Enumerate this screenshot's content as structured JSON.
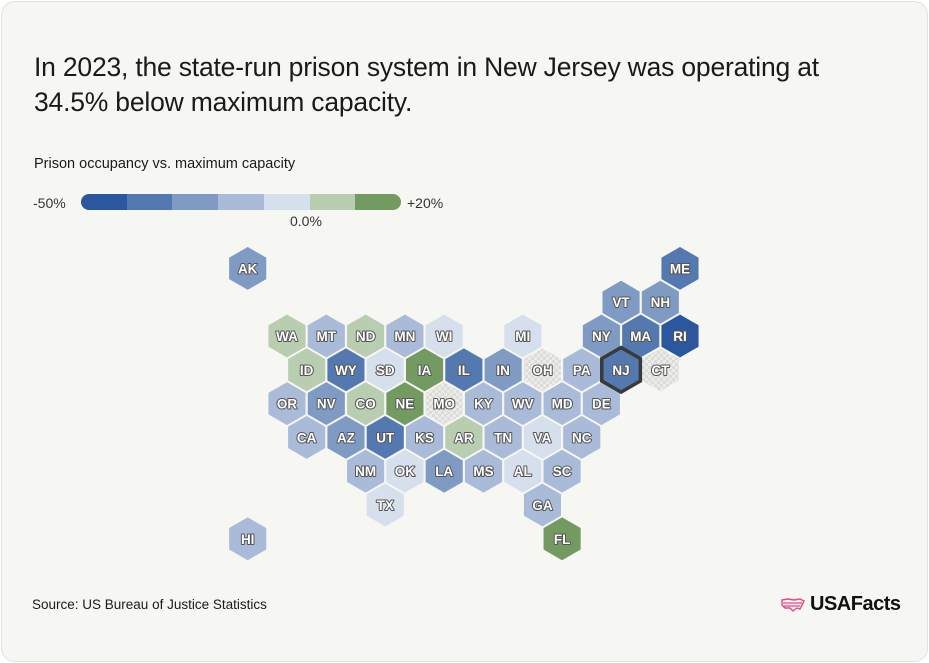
{
  "title": "In 2023, the state-run prison system in New Jersey was operating at 34.5% below maximum capacity.",
  "legend": {
    "title": "Prison occupancy vs. maximum capacity",
    "min_label": "-50%",
    "max_label": "+20%",
    "mid_label": "0.0%",
    "bins": [
      "#2b579e",
      "#5479b0",
      "#7f9bc4",
      "#a9bbd8",
      "#d6dfec",
      "#b9cdb0",
      "#739a60"
    ],
    "no_data_pattern": "gray checker"
  },
  "map": {
    "highlighted_state": "NJ",
    "states": [
      {
        "code": "AK",
        "bin": 2
      },
      {
        "code": "ME",
        "bin": 1
      },
      {
        "code": "VT",
        "bin": 2
      },
      {
        "code": "NH",
        "bin": 2
      },
      {
        "code": "WA",
        "bin": 5
      },
      {
        "code": "MT",
        "bin": 3
      },
      {
        "code": "ND",
        "bin": 5
      },
      {
        "code": "MN",
        "bin": 3
      },
      {
        "code": "WI",
        "bin": 4
      },
      {
        "code": "MI",
        "bin": 4
      },
      {
        "code": "NY",
        "bin": 2
      },
      {
        "code": "MA",
        "bin": 1
      },
      {
        "code": "RI",
        "bin": 0
      },
      {
        "code": "ID",
        "bin": 5
      },
      {
        "code": "WY",
        "bin": 1
      },
      {
        "code": "SD",
        "bin": 4
      },
      {
        "code": "IA",
        "bin": 6
      },
      {
        "code": "IL",
        "bin": 1
      },
      {
        "code": "IN",
        "bin": 2
      },
      {
        "code": "OH",
        "bin": null
      },
      {
        "code": "PA",
        "bin": 3
      },
      {
        "code": "NJ",
        "bin": 1
      },
      {
        "code": "CT",
        "bin": null
      },
      {
        "code": "OR",
        "bin": 3
      },
      {
        "code": "NV",
        "bin": 2
      },
      {
        "code": "CO",
        "bin": 5
      },
      {
        "code": "NE",
        "bin": 6
      },
      {
        "code": "MO",
        "bin": null
      },
      {
        "code": "KY",
        "bin": 3
      },
      {
        "code": "WV",
        "bin": 3
      },
      {
        "code": "MD",
        "bin": 3
      },
      {
        "code": "DE",
        "bin": 3
      },
      {
        "code": "CA",
        "bin": 3
      },
      {
        "code": "AZ",
        "bin": 2
      },
      {
        "code": "UT",
        "bin": 1
      },
      {
        "code": "KS",
        "bin": 3
      },
      {
        "code": "AR",
        "bin": 5
      },
      {
        "code": "TN",
        "bin": 3
      },
      {
        "code": "VA",
        "bin": 4
      },
      {
        "code": "NC",
        "bin": 3
      },
      {
        "code": "NM",
        "bin": 3
      },
      {
        "code": "OK",
        "bin": 4
      },
      {
        "code": "LA",
        "bin": 2
      },
      {
        "code": "MS",
        "bin": 3
      },
      {
        "code": "AL",
        "bin": 4
      },
      {
        "code": "SC",
        "bin": 3
      },
      {
        "code": "TX",
        "bin": 4
      },
      {
        "code": "GA",
        "bin": 3
      },
      {
        "code": "HI",
        "bin": 3
      },
      {
        "code": "FL",
        "bin": 6
      }
    ]
  },
  "source": "Source: US Bureau of Justice Statistics",
  "brand": "USAFacts",
  "brand_color": "#e8458b"
}
